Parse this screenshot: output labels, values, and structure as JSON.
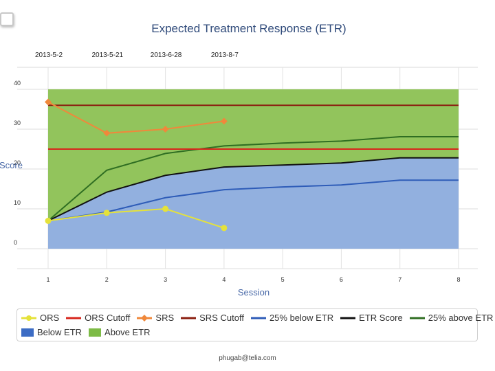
{
  "chart_data": {
    "type": "line",
    "title": "Expected Treatment Response (ETR)",
    "xlabel": "Session",
    "ylabel": "Score",
    "x": [
      1,
      2,
      3,
      4,
      5,
      6,
      7,
      8
    ],
    "xlim": [
      1,
      8
    ],
    "ylim": [
      0,
      40
    ],
    "yticks": [
      0,
      10,
      20,
      30,
      40
    ],
    "grid": true,
    "session_dates": [
      {
        "session": 1,
        "date": "2013-5-2"
      },
      {
        "session": 2,
        "date": "2013-5-21"
      },
      {
        "session": 3,
        "date": "2013-6-28"
      },
      {
        "session": 4,
        "date": "2013-8-7"
      }
    ],
    "areas": [
      {
        "name": "Below ETR",
        "color": "#92b0df",
        "values": [
          7,
          14.2,
          18.4,
          20.5,
          21,
          21.5,
          22.8,
          22.8
        ]
      },
      {
        "name": "Above ETR",
        "color": "#92c45c",
        "top": 40
      }
    ],
    "series": [
      {
        "name": "ORS",
        "color": "#e5e23a",
        "marker": "circle",
        "x": [
          1,
          2,
          3,
          4
        ],
        "values": [
          7,
          9,
          10,
          5.2
        ]
      },
      {
        "name": "ORS Cutoff",
        "color": "#d7261c",
        "style": "line",
        "values": [
          25,
          25,
          25,
          25,
          25,
          25,
          25,
          25
        ]
      },
      {
        "name": "SRS",
        "color": "#f0883b",
        "marker": "diamond",
        "x": [
          1,
          2,
          3,
          4
        ],
        "values": [
          36.8,
          29,
          30,
          32
        ]
      },
      {
        "name": "SRS Cutoff",
        "color": "#8b1e10",
        "style": "line",
        "values": [
          36,
          36,
          36,
          36,
          36,
          36,
          36,
          36
        ]
      },
      {
        "name": "25% below ETR",
        "color": "#2e5cb8",
        "style": "line",
        "values": [
          7,
          9.2,
          12.8,
          14.8,
          15.5,
          16,
          17.2,
          17.2
        ]
      },
      {
        "name": "ETR Score",
        "color": "#111111",
        "style": "line",
        "values": [
          7,
          14.2,
          18.4,
          20.5,
          21,
          21.5,
          22.8,
          22.8
        ]
      },
      {
        "name": "25% above ETR",
        "color": "#2f6e22",
        "style": "line",
        "values": [
          7,
          19.7,
          23.9,
          25.8,
          26.5,
          27,
          28.1,
          28.1
        ]
      }
    ]
  },
  "legend": {
    "row1": [
      {
        "label": "ORS",
        "kind": "line-dot",
        "color": "#e5e23a"
      },
      {
        "label": "ORS Cutoff",
        "kind": "line",
        "color": "#d7261c"
      },
      {
        "label": "SRS",
        "kind": "line-diamond",
        "color": "#f0883b"
      },
      {
        "label": "SRS Cutoff",
        "kind": "line",
        "color": "#8b1e10"
      },
      {
        "label": "25% below ETR",
        "kind": "line",
        "color": "#2e5cb8"
      },
      {
        "label": "ETR Score",
        "kind": "line",
        "color": "#111111"
      },
      {
        "label": "25% above ETR",
        "kind": "line",
        "color": "#2f6e22"
      }
    ],
    "row2": [
      {
        "label": "Below ETR",
        "kind": "swatch",
        "color": "#3c6cc4"
      },
      {
        "label": "Above ETR",
        "kind": "swatch",
        "color": "#7dbb46"
      }
    ]
  },
  "footer": "phugab@telia.com"
}
